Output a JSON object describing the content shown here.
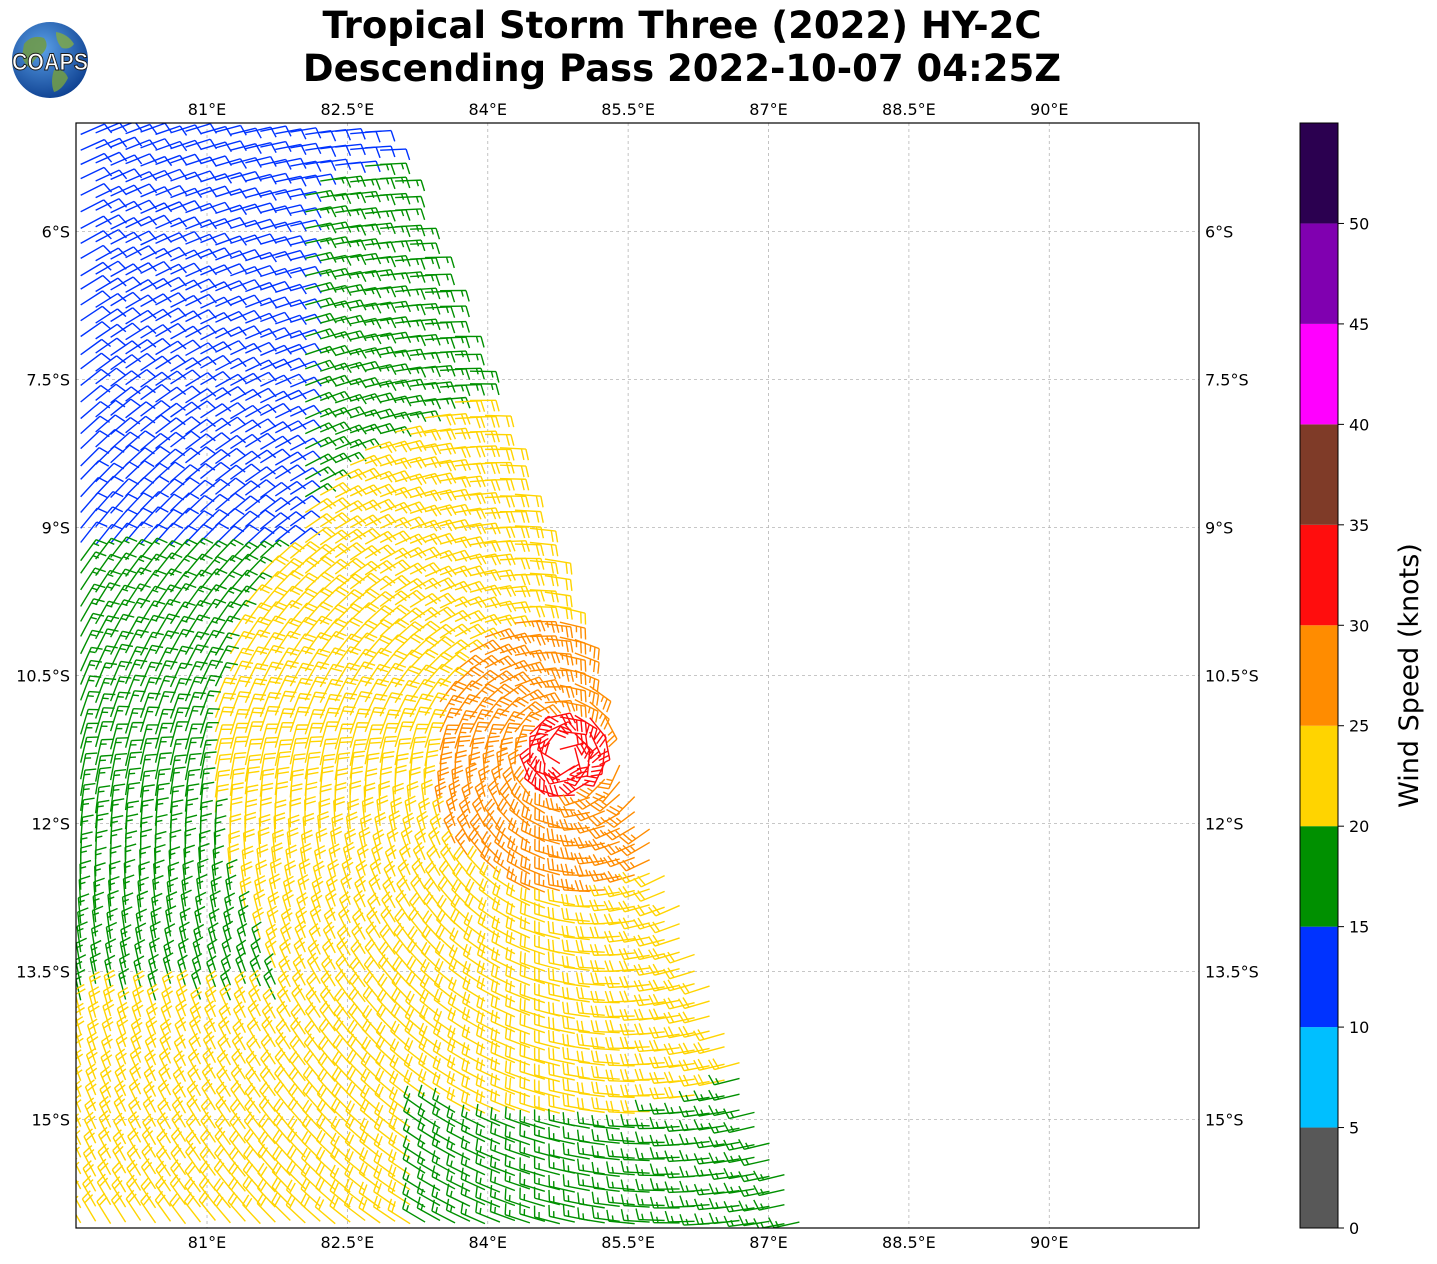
{
  "title": {
    "line1": "Tropical Storm Three (2022) HY-2C",
    "line2": "Descending Pass 2022-10-07 04:25Z"
  },
  "logo": {
    "text": "COAPS",
    "icon": "globe-logo-icon"
  },
  "map": {
    "lon_range": [
      79.6,
      91.6
    ],
    "lat_range": [
      -16.1,
      -4.9
    ],
    "lon_ticks": [
      {
        "value": 81.0,
        "label": "81°E"
      },
      {
        "value": 82.5,
        "label": "82.5°E"
      },
      {
        "value": 84.0,
        "label": "84°E"
      },
      {
        "value": 85.5,
        "label": "85.5°E"
      },
      {
        "value": 87.0,
        "label": "87°E"
      },
      {
        "value": 88.5,
        "label": "88.5°E"
      },
      {
        "value": 90.0,
        "label": "90°E"
      }
    ],
    "lat_ticks": [
      {
        "value": -6.0,
        "label": "6°S"
      },
      {
        "value": -7.5,
        "label": "7.5°S"
      },
      {
        "value": -9.0,
        "label": "9°S"
      },
      {
        "value": -10.5,
        "label": "10.5°S"
      },
      {
        "value": -12.0,
        "label": "12°S"
      },
      {
        "value": -13.5,
        "label": "13.5°S"
      },
      {
        "value": -15.0,
        "label": "15°S"
      }
    ],
    "grid": true,
    "storm_center": {
      "lon": 84.8,
      "lat": -11.3
    },
    "swath_east_edge": [
      {
        "lat": -4.9,
        "lon": 82.8
      },
      {
        "lat": -10.5,
        "lon": 85.1
      },
      {
        "lat": -16.1,
        "lon": 87.4
      }
    ]
  },
  "colorbar": {
    "label": "Wind Speed (knots)",
    "range": [
      0,
      55
    ],
    "ticks": [
      "0",
      "5",
      "10",
      "15",
      "20",
      "25",
      "30",
      "35",
      "40",
      "45",
      "50"
    ],
    "bins": [
      {
        "min": 0,
        "max": 5,
        "color": "#585858"
      },
      {
        "min": 5,
        "max": 10,
        "color": "#00bfff"
      },
      {
        "min": 10,
        "max": 15,
        "color": "#0033ff"
      },
      {
        "min": 15,
        "max": 20,
        "color": "#009000"
      },
      {
        "min": 20,
        "max": 25,
        "color": "#ffd400"
      },
      {
        "min": 25,
        "max": 30,
        "color": "#ff8c00"
      },
      {
        "min": 30,
        "max": 35,
        "color": "#ff0d0d"
      },
      {
        "min": 35,
        "max": 40,
        "color": "#7f3b28"
      },
      {
        "min": 40,
        "max": 45,
        "color": "#ff00ff"
      },
      {
        "min": 45,
        "max": 50,
        "color": "#8000b0"
      },
      {
        "min": 50,
        "max": 55,
        "color": "#2b0050"
      }
    ]
  }
}
